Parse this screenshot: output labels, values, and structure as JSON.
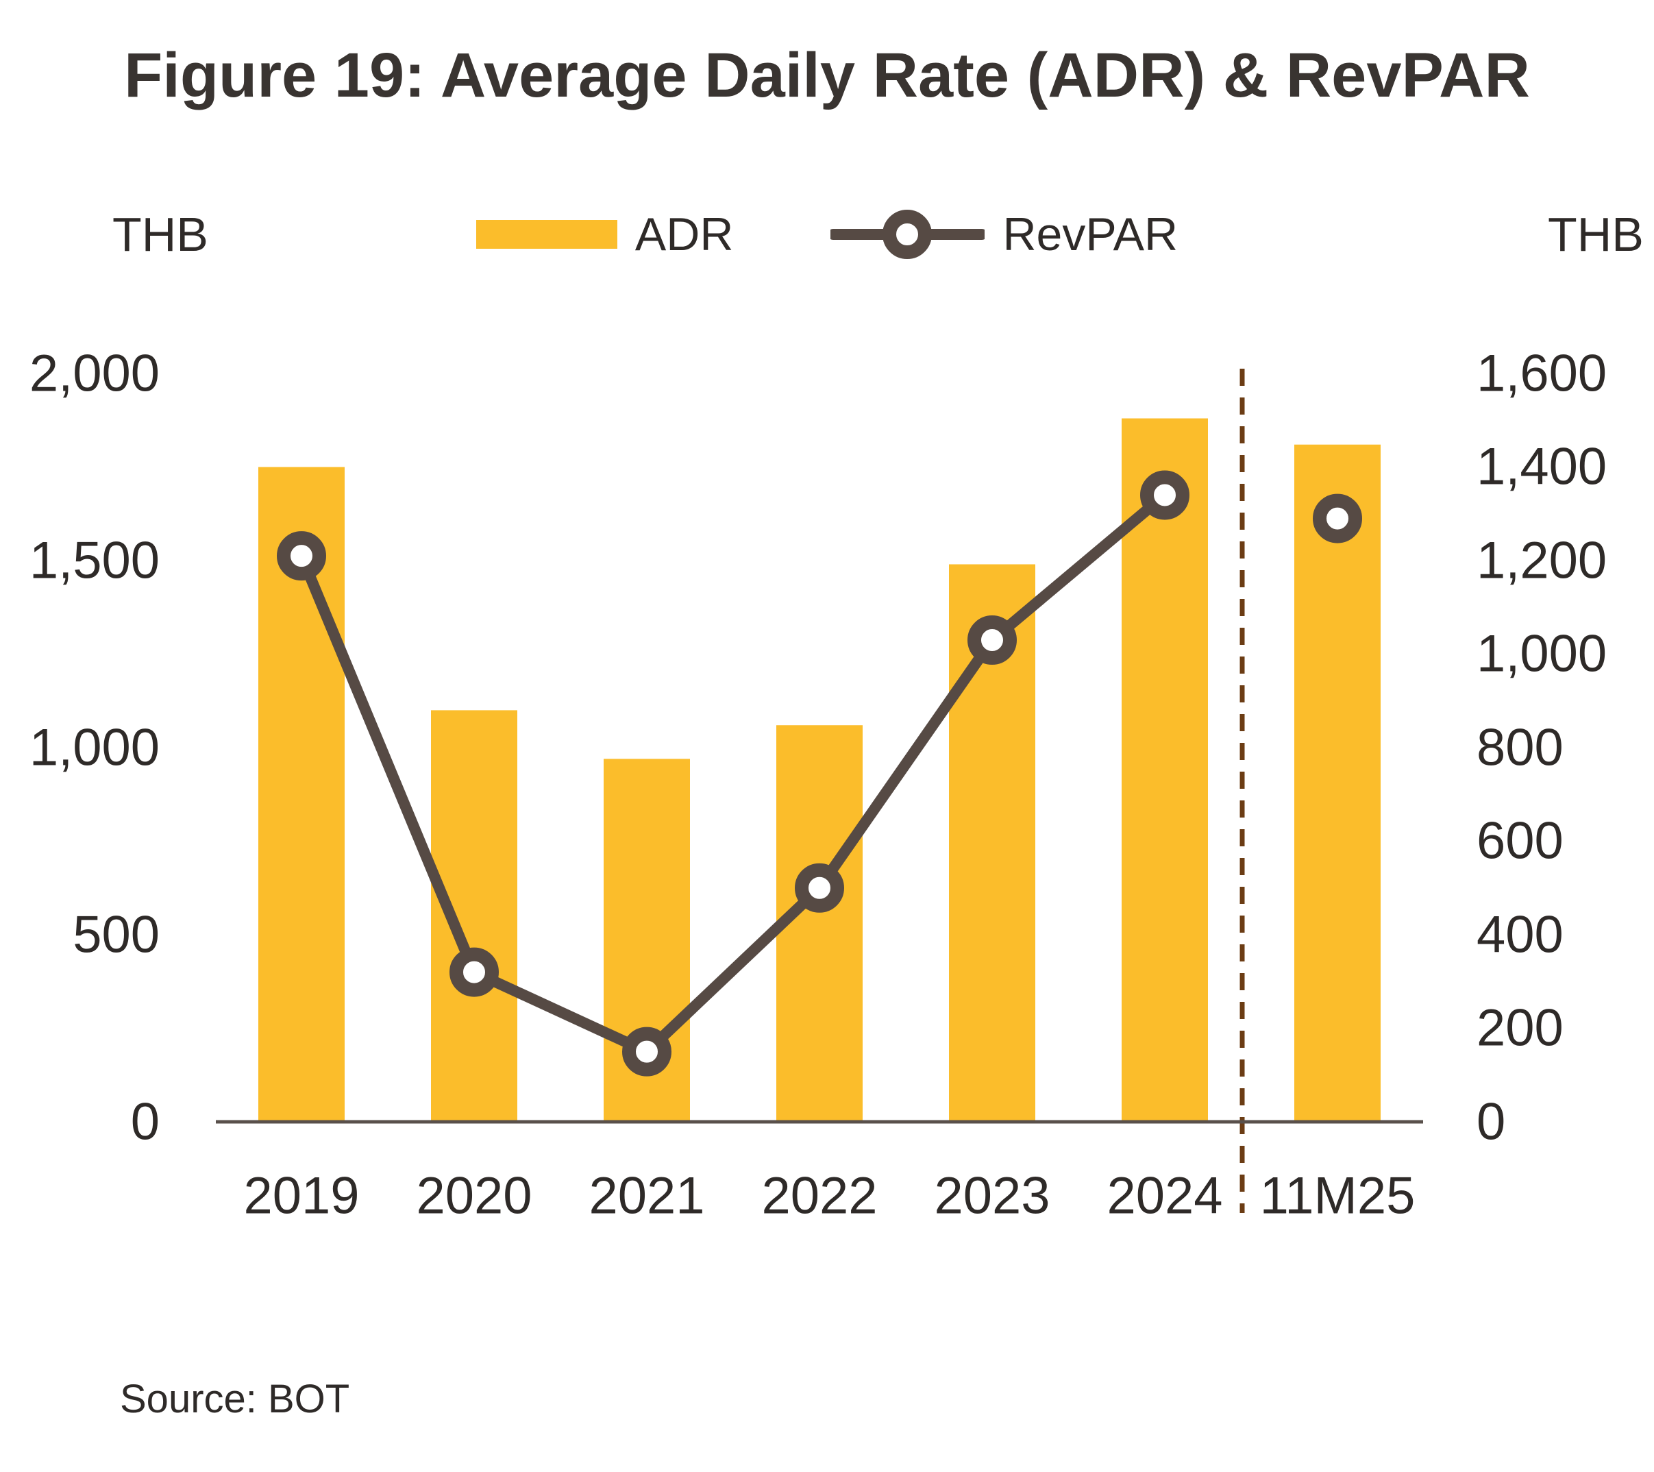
{
  "title": "Figure 19: Average Daily Rate (ADR) & RevPAR",
  "legend": {
    "adr_label": "ADR",
    "revpar_label": "RevPAR"
  },
  "axes": {
    "left_unit": "THB",
    "right_unit": "THB",
    "left_ticks": [
      "2,000",
      "1,500",
      "1,000",
      "500",
      "0"
    ],
    "right_ticks": [
      "1,600",
      "1,400",
      "1,200",
      "1,000",
      "800",
      "600",
      "400",
      "200",
      "0"
    ]
  },
  "chart_data": {
    "type": "bar+line combo",
    "title": "Figure 19: Average Daily Rate (ADR) & RevPAR",
    "categories": [
      "2019",
      "2020",
      "2021",
      "2022",
      "2023",
      "2024",
      "11M25"
    ],
    "series": [
      {
        "name": "ADR",
        "type": "bar",
        "axis": "left",
        "unit": "THB",
        "values": [
          1750,
          1100,
          970,
          1060,
          1490,
          1880,
          1810
        ]
      },
      {
        "name": "RevPAR",
        "type": "line",
        "axis": "right",
        "unit": "THB",
        "values": [
          1210,
          320,
          150,
          500,
          1030,
          1340,
          1290
        ],
        "connected_through_index": 5
      }
    ],
    "ylim_left": [
      0,
      2000
    ],
    "ylim_right": [
      0,
      1600
    ],
    "separator_after_index": 5,
    "grid": false,
    "legend_position": "top"
  },
  "source": "Source: BOT",
  "colors": {
    "bar": "#FBBD2B",
    "line": "#564A44",
    "separator": "#6B3C14",
    "axis": "#59504B",
    "text": "#2E2A28",
    "title": "#393431"
  }
}
